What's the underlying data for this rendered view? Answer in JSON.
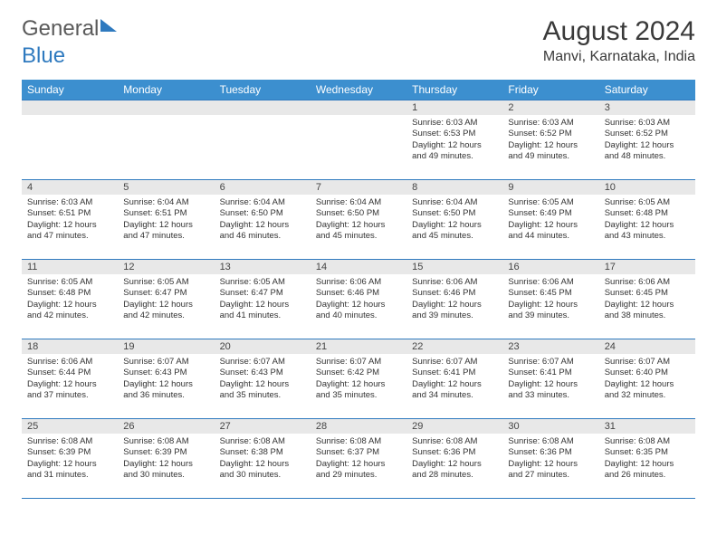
{
  "logo": {
    "part1": "General",
    "part2": "Blue"
  },
  "title": "August 2024",
  "location": "Manvi, Karnataka, India",
  "day_headers": [
    "Sunday",
    "Monday",
    "Tuesday",
    "Wednesday",
    "Thursday",
    "Friday",
    "Saturday"
  ],
  "colors": {
    "header_bg": "#3c8fcf",
    "header_text": "#ffffff",
    "border": "#2f7abf",
    "daynum_bg": "#e8e8e8",
    "text": "#333333"
  },
  "weeks": [
    [
      null,
      null,
      null,
      null,
      {
        "n": "1",
        "sr": "Sunrise: 6:03 AM",
        "ss": "Sunset: 6:53 PM",
        "d1": "Daylight: 12 hours",
        "d2": "and 49 minutes."
      },
      {
        "n": "2",
        "sr": "Sunrise: 6:03 AM",
        "ss": "Sunset: 6:52 PM",
        "d1": "Daylight: 12 hours",
        "d2": "and 49 minutes."
      },
      {
        "n": "3",
        "sr": "Sunrise: 6:03 AM",
        "ss": "Sunset: 6:52 PM",
        "d1": "Daylight: 12 hours",
        "d2": "and 48 minutes."
      }
    ],
    [
      {
        "n": "4",
        "sr": "Sunrise: 6:03 AM",
        "ss": "Sunset: 6:51 PM",
        "d1": "Daylight: 12 hours",
        "d2": "and 47 minutes."
      },
      {
        "n": "5",
        "sr": "Sunrise: 6:04 AM",
        "ss": "Sunset: 6:51 PM",
        "d1": "Daylight: 12 hours",
        "d2": "and 47 minutes."
      },
      {
        "n": "6",
        "sr": "Sunrise: 6:04 AM",
        "ss": "Sunset: 6:50 PM",
        "d1": "Daylight: 12 hours",
        "d2": "and 46 minutes."
      },
      {
        "n": "7",
        "sr": "Sunrise: 6:04 AM",
        "ss": "Sunset: 6:50 PM",
        "d1": "Daylight: 12 hours",
        "d2": "and 45 minutes."
      },
      {
        "n": "8",
        "sr": "Sunrise: 6:04 AM",
        "ss": "Sunset: 6:50 PM",
        "d1": "Daylight: 12 hours",
        "d2": "and 45 minutes."
      },
      {
        "n": "9",
        "sr": "Sunrise: 6:05 AM",
        "ss": "Sunset: 6:49 PM",
        "d1": "Daylight: 12 hours",
        "d2": "and 44 minutes."
      },
      {
        "n": "10",
        "sr": "Sunrise: 6:05 AM",
        "ss": "Sunset: 6:48 PM",
        "d1": "Daylight: 12 hours",
        "d2": "and 43 minutes."
      }
    ],
    [
      {
        "n": "11",
        "sr": "Sunrise: 6:05 AM",
        "ss": "Sunset: 6:48 PM",
        "d1": "Daylight: 12 hours",
        "d2": "and 42 minutes."
      },
      {
        "n": "12",
        "sr": "Sunrise: 6:05 AM",
        "ss": "Sunset: 6:47 PM",
        "d1": "Daylight: 12 hours",
        "d2": "and 42 minutes."
      },
      {
        "n": "13",
        "sr": "Sunrise: 6:05 AM",
        "ss": "Sunset: 6:47 PM",
        "d1": "Daylight: 12 hours",
        "d2": "and 41 minutes."
      },
      {
        "n": "14",
        "sr": "Sunrise: 6:06 AM",
        "ss": "Sunset: 6:46 PM",
        "d1": "Daylight: 12 hours",
        "d2": "and 40 minutes."
      },
      {
        "n": "15",
        "sr": "Sunrise: 6:06 AM",
        "ss": "Sunset: 6:46 PM",
        "d1": "Daylight: 12 hours",
        "d2": "and 39 minutes."
      },
      {
        "n": "16",
        "sr": "Sunrise: 6:06 AM",
        "ss": "Sunset: 6:45 PM",
        "d1": "Daylight: 12 hours",
        "d2": "and 39 minutes."
      },
      {
        "n": "17",
        "sr": "Sunrise: 6:06 AM",
        "ss": "Sunset: 6:45 PM",
        "d1": "Daylight: 12 hours",
        "d2": "and 38 minutes."
      }
    ],
    [
      {
        "n": "18",
        "sr": "Sunrise: 6:06 AM",
        "ss": "Sunset: 6:44 PM",
        "d1": "Daylight: 12 hours",
        "d2": "and 37 minutes."
      },
      {
        "n": "19",
        "sr": "Sunrise: 6:07 AM",
        "ss": "Sunset: 6:43 PM",
        "d1": "Daylight: 12 hours",
        "d2": "and 36 minutes."
      },
      {
        "n": "20",
        "sr": "Sunrise: 6:07 AM",
        "ss": "Sunset: 6:43 PM",
        "d1": "Daylight: 12 hours",
        "d2": "and 35 minutes."
      },
      {
        "n": "21",
        "sr": "Sunrise: 6:07 AM",
        "ss": "Sunset: 6:42 PM",
        "d1": "Daylight: 12 hours",
        "d2": "and 35 minutes."
      },
      {
        "n": "22",
        "sr": "Sunrise: 6:07 AM",
        "ss": "Sunset: 6:41 PM",
        "d1": "Daylight: 12 hours",
        "d2": "and 34 minutes."
      },
      {
        "n": "23",
        "sr": "Sunrise: 6:07 AM",
        "ss": "Sunset: 6:41 PM",
        "d1": "Daylight: 12 hours",
        "d2": "and 33 minutes."
      },
      {
        "n": "24",
        "sr": "Sunrise: 6:07 AM",
        "ss": "Sunset: 6:40 PM",
        "d1": "Daylight: 12 hours",
        "d2": "and 32 minutes."
      }
    ],
    [
      {
        "n": "25",
        "sr": "Sunrise: 6:08 AM",
        "ss": "Sunset: 6:39 PM",
        "d1": "Daylight: 12 hours",
        "d2": "and 31 minutes."
      },
      {
        "n": "26",
        "sr": "Sunrise: 6:08 AM",
        "ss": "Sunset: 6:39 PM",
        "d1": "Daylight: 12 hours",
        "d2": "and 30 minutes."
      },
      {
        "n": "27",
        "sr": "Sunrise: 6:08 AM",
        "ss": "Sunset: 6:38 PM",
        "d1": "Daylight: 12 hours",
        "d2": "and 30 minutes."
      },
      {
        "n": "28",
        "sr": "Sunrise: 6:08 AM",
        "ss": "Sunset: 6:37 PM",
        "d1": "Daylight: 12 hours",
        "d2": "and 29 minutes."
      },
      {
        "n": "29",
        "sr": "Sunrise: 6:08 AM",
        "ss": "Sunset: 6:36 PM",
        "d1": "Daylight: 12 hours",
        "d2": "and 28 minutes."
      },
      {
        "n": "30",
        "sr": "Sunrise: 6:08 AM",
        "ss": "Sunset: 6:36 PM",
        "d1": "Daylight: 12 hours",
        "d2": "and 27 minutes."
      },
      {
        "n": "31",
        "sr": "Sunrise: 6:08 AM",
        "ss": "Sunset: 6:35 PM",
        "d1": "Daylight: 12 hours",
        "d2": "and 26 minutes."
      }
    ]
  ]
}
